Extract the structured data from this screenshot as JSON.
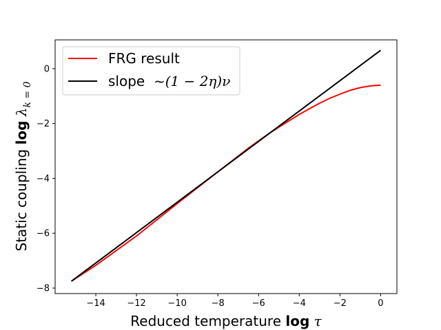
{
  "chart_data": {
    "type": "line",
    "xlabel": {
      "prefix": "Reduced temperature ",
      "bold": "log",
      "symbol": "τ"
    },
    "ylabel": {
      "prefix": "Static coupling ",
      "bold": "log",
      "symbol": "λ",
      "subscript": "k = 0"
    },
    "xlim": [
      -16.0,
      0.8
    ],
    "ylim": [
      -8.2,
      1.05
    ],
    "xticks": [
      -14,
      -12,
      -10,
      -8,
      -6,
      -4,
      -2,
      0
    ],
    "yticks": [
      -8,
      -6,
      -4,
      -2,
      0
    ],
    "xtick_labels": [
      "−14",
      "−12",
      "−10",
      "−8",
      "−6",
      "−4",
      "−2",
      "0"
    ],
    "ytick_labels": [
      "−8",
      "−6",
      "−4",
      "−2",
      "0"
    ],
    "grid": false,
    "legend_position": "top-left",
    "series": [
      {
        "name": "FRG result",
        "color": "#ff0000",
        "x": [
          -15.2,
          -14,
          -12,
          -10,
          -8,
          -6.5,
          -5.5,
          -5,
          -4.5,
          -4,
          -3.5,
          -3,
          -2.5,
          -2,
          -1.5,
          -1,
          -0.5,
          0
        ],
        "y": [
          -7.75,
          -7.17,
          -6.1,
          -4.92,
          -3.76,
          -2.9,
          -2.37,
          -2.13,
          -1.9,
          -1.67,
          -1.46,
          -1.26,
          -1.08,
          -0.93,
          -0.79,
          -0.69,
          -0.63,
          -0.6
        ]
      },
      {
        "name": "slope  ~(1 − 2η)ν",
        "legend_text": "slope",
        "legend_math": "~(1 − 2η)ν",
        "color": "#000000",
        "x": [
          -15.2,
          0
        ],
        "y": [
          -7.75,
          0.67
        ]
      }
    ]
  }
}
